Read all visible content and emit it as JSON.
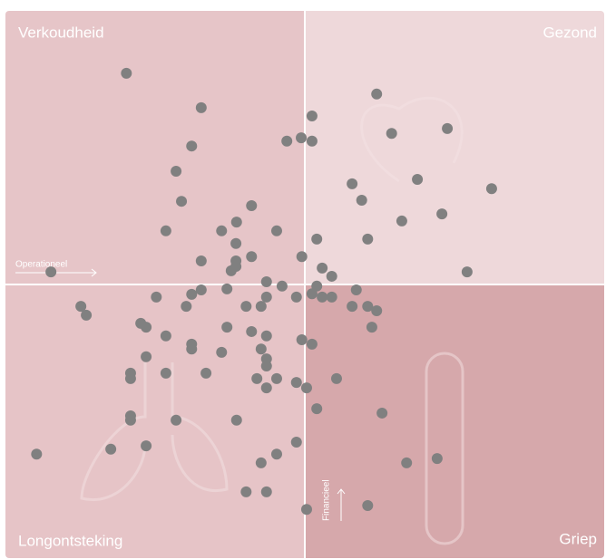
{
  "chart_data": {
    "type": "scatter",
    "quadrant_labels": [
      "Verkoudheid",
      "Gezond",
      "Longontsteking",
      "Griep"
    ],
    "xlabel": "Operationeel",
    "ylabel": "Financieel",
    "color": "#808080",
    "xlim": [
      0,
      100
    ],
    "ylim": [
      0,
      100
    ],
    "x": [
      20.2,
      32.7,
      31.1,
      28.5,
      29.4,
      26.8,
      41.1,
      38.6,
      36.1,
      45.3,
      38.5,
      41.1,
      38.5,
      32.7,
      38.5,
      37.7,
      49.5,
      52.0,
      51.2,
      47.0,
      49.4,
      51.2,
      62.0,
      64.5,
      73.8,
      57.9,
      59.5,
      68.8,
      81.2,
      66.2,
      72.9,
      60.5,
      77.1,
      7.6,
      52.9,
      54.5,
      52.0,
      43.6,
      46.2,
      37.0,
      32.7,
      31.1,
      25.2,
      30.2,
      43.6,
      48.6,
      51.2,
      52.9,
      54.5,
      58.6,
      57.9,
      60.5,
      62.0,
      61.2,
      12.6,
      13.5,
      22.6,
      23.5,
      26.8,
      31.1,
      31.1,
      37.0,
      41.1,
      43.6,
      40.2,
      42.7,
      36.1,
      42.7,
      43.6,
      43.6,
      23.5,
      20.9,
      20.9,
      26.8,
      33.5,
      42.0,
      45.3,
      43.6,
      48.6,
      50.3,
      49.5,
      51.2,
      55.3,
      52.0,
      62.9,
      20.9,
      20.9,
      28.5,
      38.6,
      5.2,
      17.6,
      23.5,
      48.6,
      45.3,
      42.7,
      67.0,
      72.1,
      40.2,
      43.6,
      50.3,
      60.5
    ],
    "values": [
      88.6,
      82.3,
      75.3,
      70.7,
      65.2,
      59.8,
      64.4,
      61.4,
      59.8,
      59.8,
      57.5,
      55.1,
      54.3,
      54.3,
      53.3,
      52.5,
      55.1,
      58.3,
      80.8,
      76.2,
      76.8,
      76.2,
      84.8,
      77.6,
      78.5,
      68.4,
      65.4,
      69.2,
      67.5,
      61.6,
      62.9,
      58.3,
      52.3,
      52.3,
      53.0,
      51.5,
      49.7,
      50.5,
      49.7,
      49.2,
      49.0,
      48.2,
      47.7,
      46.0,
      47.7,
      47.7,
      48.3,
      47.7,
      47.7,
      49.0,
      46.0,
      46.0,
      45.2,
      42.2,
      46.0,
      44.4,
      42.9,
      42.2,
      40.6,
      39.1,
      38.2,
      42.2,
      41.4,
      40.6,
      46.0,
      46.0,
      37.6,
      38.2,
      36.4,
      35.1,
      36.8,
      33.8,
      32.8,
      33.8,
      33.8,
      32.8,
      32.8,
      31.1,
      32.1,
      31.1,
      39.9,
      39.1,
      32.8,
      27.3,
      26.5,
      26.0,
      25.2,
      25.2,
      25.2,
      19.0,
      19.9,
      20.5,
      21.2,
      19.0,
      17.4,
      17.4,
      18.2,
      12.1,
      12.1,
      8.9,
      9.6
    ]
  }
}
